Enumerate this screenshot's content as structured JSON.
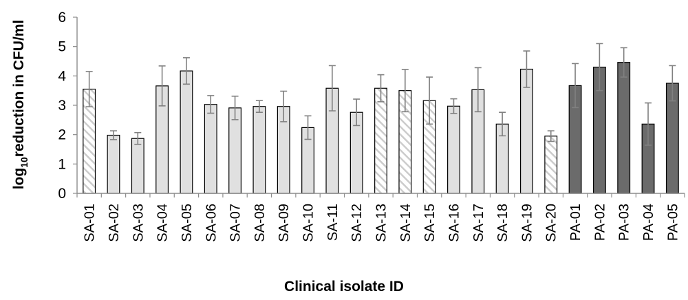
{
  "chart_data": {
    "type": "bar",
    "xlabel": "Clinical isolate ID",
    "ylabel": {
      "prefix": "log",
      "subscript": "10",
      "suffix": "reduction in CFU/ml"
    },
    "ylim": [
      0,
      6
    ],
    "yticks": [
      "0",
      "1",
      "2",
      "3",
      "4",
      "5",
      "6"
    ],
    "grid": false,
    "categories": [
      "SA-01",
      "SA-02",
      "SA-03",
      "SA-04",
      "SA-05",
      "SA-06",
      "SA-07",
      "SA-08",
      "SA-09",
      "SA-10",
      "SA-11",
      "SA-12",
      "SA-13",
      "SA-14",
      "SA-15",
      "SA-16",
      "SA-17",
      "SA-18",
      "SA-19",
      "SA-20",
      "PA-01",
      "PA-02",
      "PA-03",
      "PA-04",
      "PA-05"
    ],
    "values": [
      3.55,
      1.98,
      1.87,
      3.66,
      4.17,
      3.03,
      2.91,
      2.96,
      2.96,
      2.24,
      3.58,
      2.76,
      3.58,
      3.5,
      3.16,
      2.97,
      3.53,
      2.36,
      4.23,
      1.95,
      3.67,
      4.3,
      4.46,
      2.36,
      3.75
    ],
    "errors": [
      0.6,
      0.15,
      0.2,
      0.68,
      0.45,
      0.3,
      0.4,
      0.2,
      0.52,
      0.4,
      0.77,
      0.45,
      0.46,
      0.72,
      0.8,
      0.25,
      0.75,
      0.4,
      0.62,
      0.18,
      0.75,
      0.8,
      0.5,
      0.72,
      0.6
    ],
    "styles": [
      "hatched",
      "light",
      "light",
      "light",
      "light",
      "light",
      "light",
      "light",
      "light",
      "light",
      "light",
      "light",
      "hatched",
      "hatched",
      "hatched",
      "light",
      "light",
      "light",
      "light",
      "hatched",
      "dark",
      "dark",
      "dark",
      "dark",
      "dark"
    ],
    "colors": {
      "light": "#e0e0e0",
      "dark": "#6b6b6b",
      "hatch": "#cccccc",
      "outline": "#000000",
      "error": "#808080",
      "axis": "#8c8c8c"
    }
  }
}
